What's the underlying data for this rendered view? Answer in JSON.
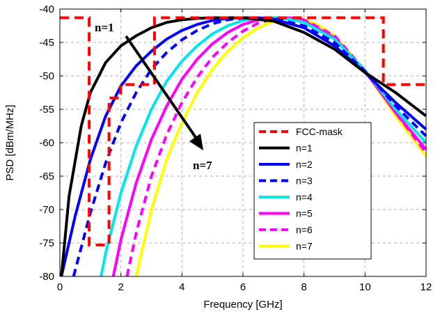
{
  "chart_data": {
    "type": "line",
    "xlabel": "Frequency [GHz]",
    "ylabel": "PSD [dBm/MHz]",
    "xlim": [
      0,
      12
    ],
    "ylim": [
      -80,
      -40
    ],
    "xticks": [
      0,
      2,
      4,
      6,
      8,
      10,
      12
    ],
    "yticks": [
      -40,
      -45,
      -50,
      -55,
      -60,
      -65,
      -70,
      -75,
      -80
    ],
    "grid": true,
    "legend_position": "right-middle",
    "mask": {
      "name": "FCC-mask",
      "color": "#ff0000",
      "style": "dashed",
      "x": [
        0,
        0.96,
        0.96,
        1.61,
        1.61,
        1.99,
        1.99,
        3.1,
        3.1,
        10.6,
        10.6,
        12
      ],
      "y": [
        -41.3,
        -41.3,
        -75.3,
        -75.3,
        -53.3,
        -53.3,
        -51.3,
        -51.3,
        -41.3,
        -41.3,
        -51.3,
        -51.3
      ]
    },
    "series": [
      {
        "name": "n=1",
        "color": "#000000",
        "style": "solid",
        "x": [
          0.05,
          0.3,
          0.7,
          1.0,
          1.5,
          2.0,
          2.5,
          3.0,
          3.5,
          4.0,
          4.5,
          5.0,
          6.0,
          7.0,
          8.0,
          9.0,
          10.0,
          11.0,
          12.0
        ],
        "y": [
          -80,
          -68,
          -57.5,
          -52.5,
          -48,
          -45.5,
          -44,
          -42.8,
          -42,
          -41.6,
          -41.4,
          -41.3,
          -41.3,
          -41.8,
          -43.5,
          -46,
          -49.5,
          -52.5,
          -56
        ]
      },
      {
        "name": "n=2",
        "color": "#0000ff",
        "style": "solid",
        "x": [
          0.05,
          0.5,
          1.0,
          1.5,
          2.0,
          2.5,
          3.0,
          3.5,
          4.0,
          4.5,
          5.0,
          5.5,
          6.0,
          6.5,
          7.0,
          8.0,
          9.0,
          10.0,
          11.0,
          12.0
        ],
        "y": [
          -80,
          -71,
          -62.5,
          -56,
          -51.5,
          -48.5,
          -46.3,
          -44.5,
          -43.2,
          -42.3,
          -41.7,
          -41.4,
          -41.3,
          -41.3,
          -41.5,
          -42.8,
          -45.5,
          -49.5,
          -54,
          -58
        ]
      },
      {
        "name": "n=3",
        "color": "#0000ff",
        "style": "dashed",
        "x": [
          0.45,
          1.0,
          1.5,
          2.0,
          2.5,
          3.0,
          3.5,
          4.0,
          4.5,
          5.0,
          5.5,
          6.0,
          6.5,
          7.0,
          8.0,
          9.0,
          10.0,
          11.0,
          12.0
        ],
        "y": [
          -80,
          -70.5,
          -63,
          -57,
          -52.5,
          -49,
          -46.5,
          -44.6,
          -43.2,
          -42.2,
          -41.6,
          -41.35,
          -41.3,
          -41.4,
          -42.5,
          -45,
          -49.3,
          -54.5,
          -59
        ]
      },
      {
        "name": "n=4",
        "color": "#00e5ee",
        "style": "solid",
        "x": [
          1.35,
          1.5,
          2.0,
          2.5,
          3.0,
          3.5,
          4.0,
          4.5,
          5.0,
          5.5,
          6.0,
          6.5,
          7.0,
          7.5,
          8.0,
          9.0,
          10.0,
          11.0,
          12.0
        ],
        "y": [
          -80,
          -76.5,
          -67.5,
          -60.5,
          -55,
          -50.8,
          -47.8,
          -45.5,
          -43.7,
          -42.5,
          -41.7,
          -41.35,
          -41.3,
          -41.5,
          -42,
          -44.5,
          -49.2,
          -55,
          -60
        ]
      },
      {
        "name": "n=5",
        "color": "#ff00ff",
        "style": "solid",
        "x": [
          1.75,
          2.0,
          2.5,
          3.0,
          3.5,
          4.0,
          4.5,
          5.0,
          5.5,
          6.0,
          6.5,
          7.0,
          7.5,
          8.0,
          9.0,
          10.0,
          11.0,
          12.0
        ],
        "y": [
          -80,
          -74.5,
          -66,
          -59.5,
          -54.5,
          -50.5,
          -47.5,
          -45.2,
          -43.5,
          -42.3,
          -41.6,
          -41.3,
          -41.35,
          -41.8,
          -44.3,
          -49.3,
          -55.5,
          -61
        ]
      },
      {
        "name": "n=6",
        "color": "#ff00ff",
        "style": "dashed",
        "x": [
          2.2,
          2.5,
          3.0,
          3.5,
          4.0,
          4.5,
          5.0,
          5.5,
          6.0,
          6.5,
          7.0,
          7.5,
          8.0,
          9.0,
          10.0,
          11.0,
          12.0
        ],
        "y": [
          -80,
          -73.5,
          -65,
          -58.8,
          -54,
          -50.2,
          -47.2,
          -45,
          -43.3,
          -42.1,
          -41.5,
          -41.3,
          -41.6,
          -44,
          -49.2,
          -55.5,
          -61.5
        ]
      },
      {
        "name": "n=7",
        "color": "#ffff00",
        "style": "solid",
        "x": [
          2.5,
          3.0,
          3.5,
          4.0,
          4.5,
          5.0,
          5.5,
          6.0,
          6.5,
          7.0,
          7.5,
          8.0,
          8.5,
          9.0,
          10.0,
          11.0,
          12.0
        ],
        "y": [
          -80,
          -70,
          -62.5,
          -57,
          -52.5,
          -49,
          -46.3,
          -44.3,
          -42.8,
          -41.8,
          -41.3,
          -41.5,
          -42.5,
          -44,
          -49.2,
          -56,
          -62
        ]
      }
    ],
    "annotations": {
      "start_label": "n=1",
      "end_label": "n=7"
    }
  }
}
